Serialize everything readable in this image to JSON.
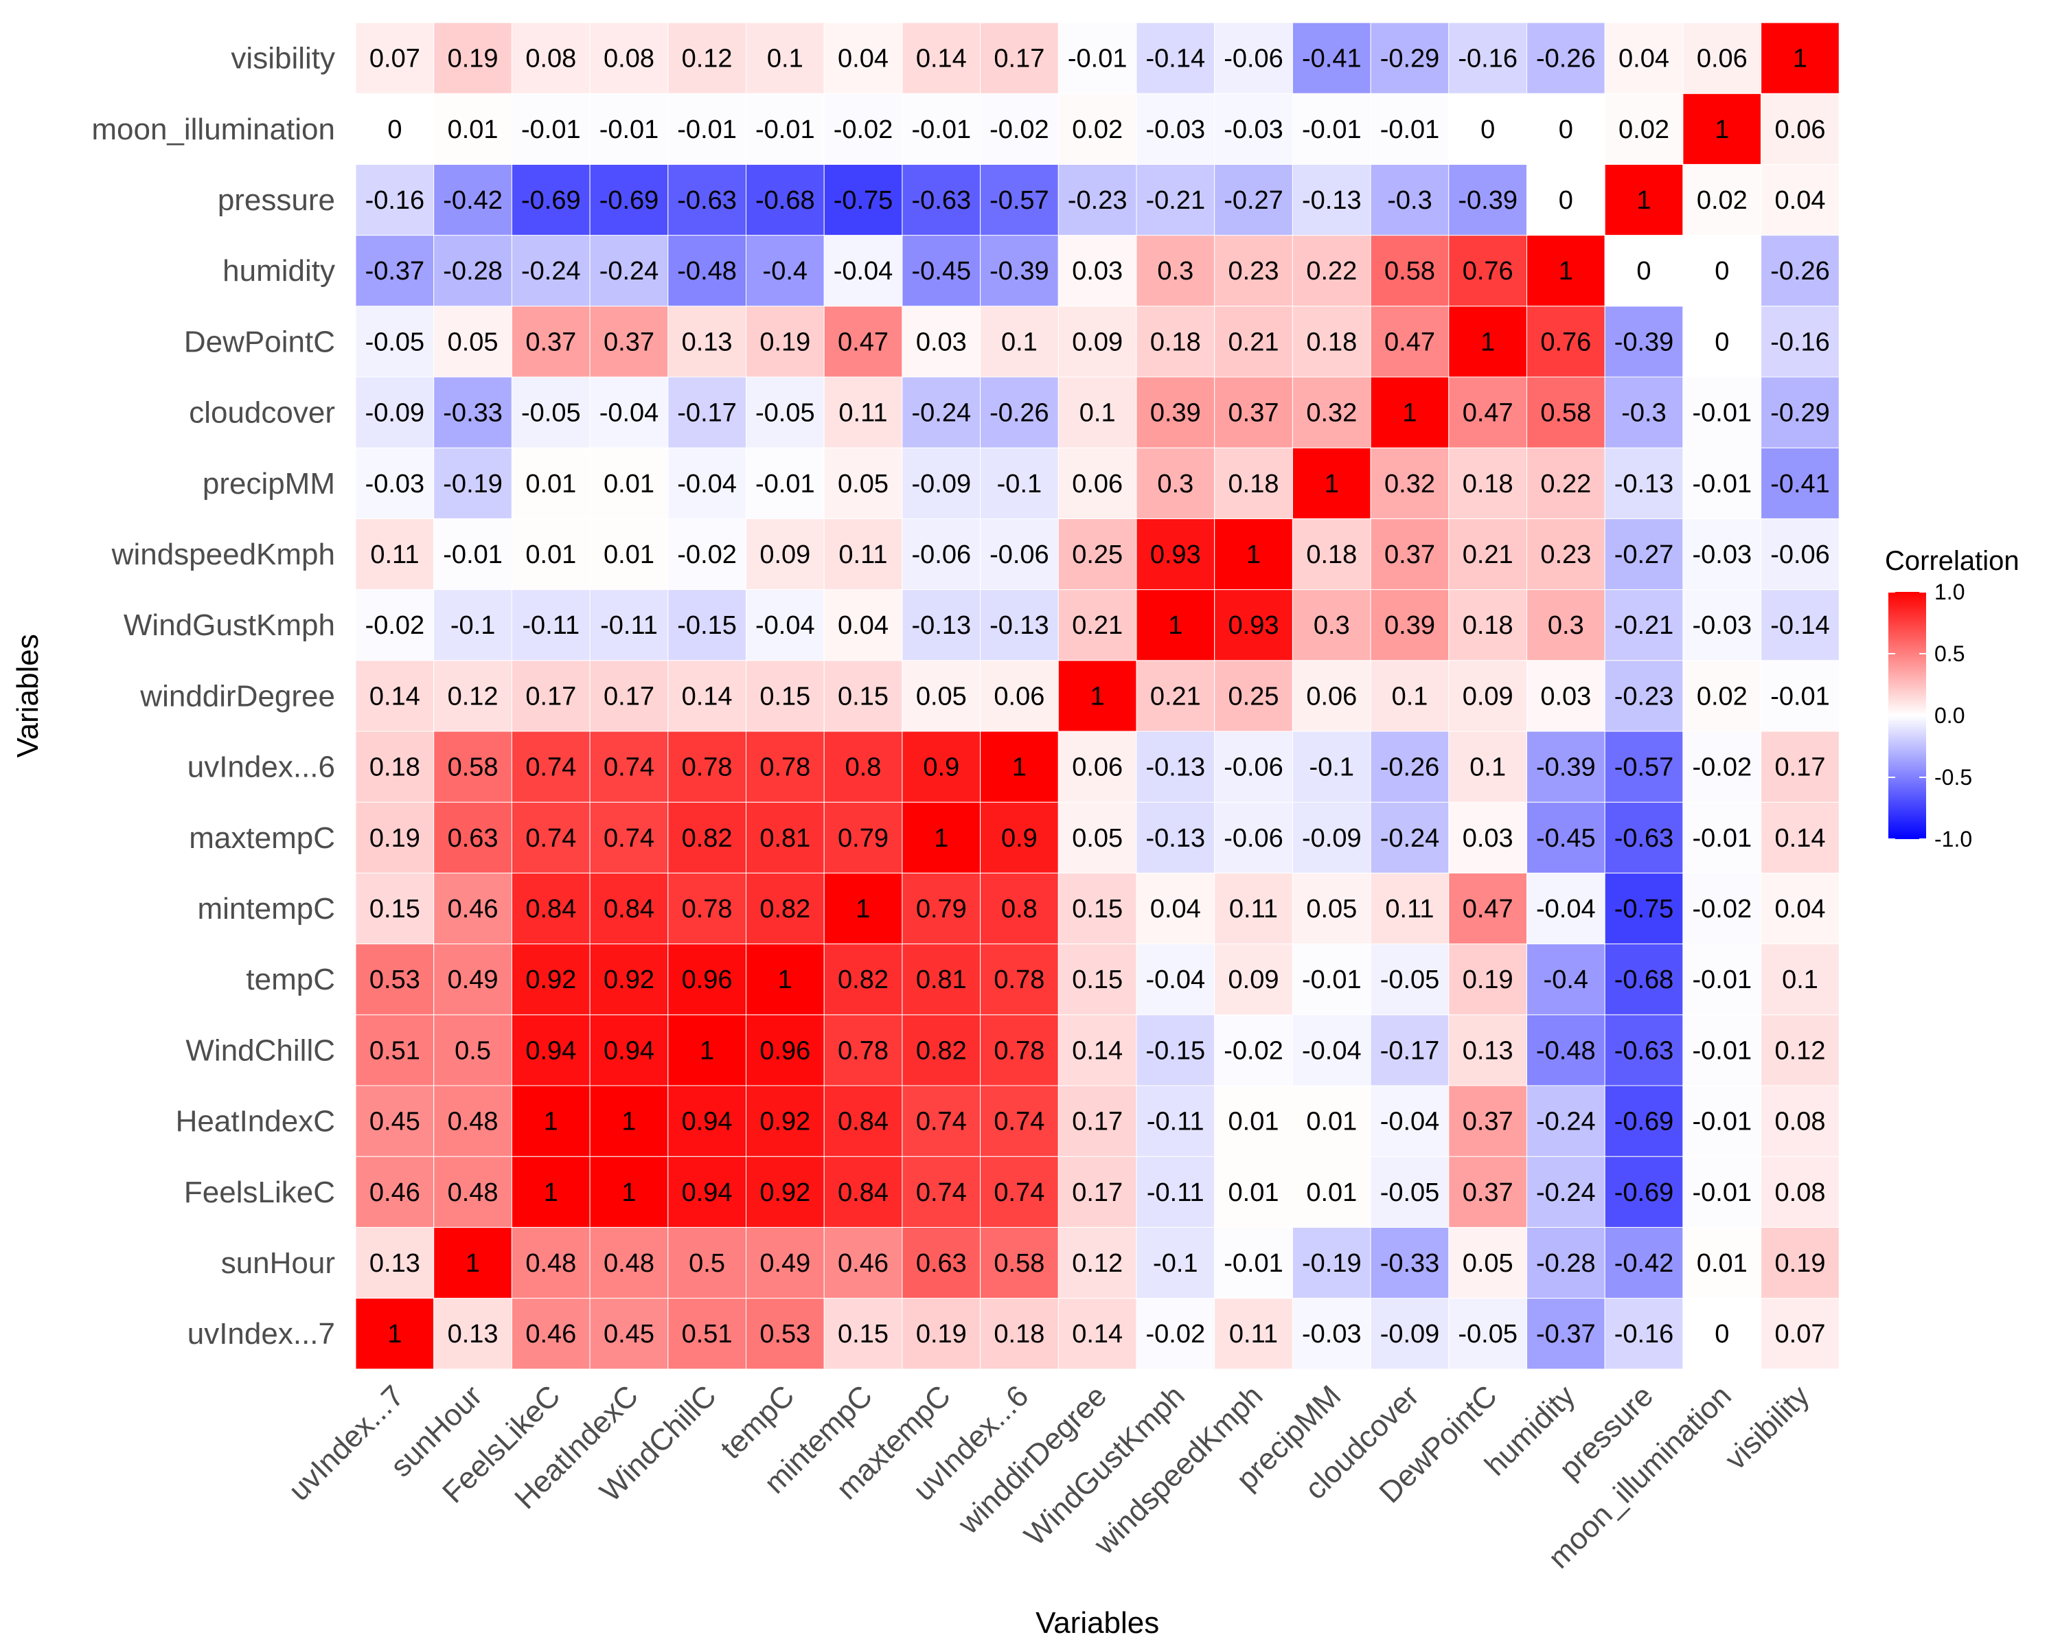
{
  "chart_data": {
    "type": "heatmap",
    "title": "",
    "xlabel": "Variables",
    "ylabel": "Variables",
    "variables": [
      "uvIndex...7",
      "sunHour",
      "FeelsLikeC",
      "HeatIndexC",
      "WindChillC",
      "tempC",
      "mintempC",
      "maxtempC",
      "uvIndex...6",
      "winddirDegree",
      "WindGustKmph",
      "windspeedKmph",
      "precipMM",
      "cloudcover",
      "DewPointC",
      "humidity",
      "pressure",
      "moon_illumination",
      "visibility"
    ],
    "matrix": [
      [
        1,
        0.13,
        0.46,
        0.45,
        0.51,
        0.53,
        0.15,
        0.19,
        0.18,
        0.14,
        -0.02,
        0.11,
        -0.03,
        -0.09,
        -0.05,
        -0.37,
        -0.16,
        0,
        0.07
      ],
      [
        0.13,
        1,
        0.48,
        0.48,
        0.5,
        0.49,
        0.46,
        0.63,
        0.58,
        0.12,
        -0.1,
        -0.01,
        -0.19,
        -0.33,
        0.05,
        -0.28,
        -0.42,
        0.01,
        0.19
      ],
      [
        0.46,
        0.48,
        1,
        1,
        0.94,
        0.92,
        0.84,
        0.74,
        0.74,
        0.17,
        -0.11,
        0.01,
        0.01,
        -0.05,
        0.37,
        -0.24,
        -0.69,
        -0.01,
        0.08
      ],
      [
        0.45,
        0.48,
        1,
        1,
        0.94,
        0.92,
        0.84,
        0.74,
        0.74,
        0.17,
        -0.11,
        0.01,
        0.01,
        -0.04,
        0.37,
        -0.24,
        -0.69,
        -0.01,
        0.08
      ],
      [
        0.51,
        0.5,
        0.94,
        0.94,
        1,
        0.96,
        0.78,
        0.82,
        0.78,
        0.14,
        -0.15,
        -0.02,
        -0.04,
        -0.17,
        0.13,
        -0.48,
        -0.63,
        -0.01,
        0.12
      ],
      [
        0.53,
        0.49,
        0.92,
        0.92,
        0.96,
        1,
        0.82,
        0.81,
        0.78,
        0.15,
        -0.04,
        0.09,
        -0.01,
        -0.05,
        0.19,
        -0.4,
        -0.68,
        -0.01,
        0.1
      ],
      [
        0.15,
        0.46,
        0.84,
        0.84,
        0.78,
        0.82,
        1,
        0.79,
        0.8,
        0.15,
        0.04,
        0.11,
        0.05,
        0.11,
        0.47,
        -0.04,
        -0.75,
        -0.02,
        0.04
      ],
      [
        0.19,
        0.63,
        0.74,
        0.74,
        0.82,
        0.81,
        0.79,
        1,
        0.9,
        0.05,
        -0.13,
        -0.06,
        -0.09,
        -0.24,
        0.03,
        -0.45,
        -0.63,
        -0.01,
        0.14
      ],
      [
        0.18,
        0.58,
        0.74,
        0.74,
        0.78,
        0.78,
        0.8,
        0.9,
        1,
        0.06,
        -0.13,
        -0.06,
        -0.1,
        -0.26,
        0.1,
        -0.39,
        -0.57,
        -0.02,
        0.17
      ],
      [
        0.14,
        0.12,
        0.17,
        0.17,
        0.14,
        0.15,
        0.15,
        0.05,
        0.06,
        1,
        0.21,
        0.25,
        0.06,
        0.1,
        0.09,
        0.03,
        -0.23,
        0.02,
        -0.01
      ],
      [
        -0.02,
        -0.1,
        -0.11,
        -0.11,
        -0.15,
        -0.04,
        0.04,
        -0.13,
        -0.13,
        0.21,
        1,
        0.93,
        0.3,
        0.39,
        0.18,
        0.3,
        -0.21,
        -0.03,
        -0.14
      ],
      [
        0.11,
        -0.01,
        0.01,
        0.01,
        -0.02,
        0.09,
        0.11,
        -0.06,
        -0.06,
        0.25,
        0.93,
        1,
        0.18,
        0.37,
        0.21,
        0.23,
        -0.27,
        -0.03,
        -0.06
      ],
      [
        -0.03,
        -0.19,
        0.01,
        0.01,
        -0.04,
        -0.01,
        0.05,
        -0.09,
        -0.1,
        0.06,
        0.3,
        0.18,
        1,
        0.32,
        0.18,
        0.22,
        -0.13,
        -0.01,
        -0.41
      ],
      [
        -0.09,
        -0.33,
        -0.05,
        -0.04,
        -0.17,
        -0.05,
        0.11,
        -0.24,
        -0.26,
        0.1,
        0.39,
        0.37,
        0.32,
        1,
        0.47,
        0.58,
        -0.3,
        -0.01,
        -0.29
      ],
      [
        -0.05,
        0.05,
        0.37,
        0.37,
        0.13,
        0.19,
        0.47,
        0.03,
        0.1,
        0.09,
        0.18,
        0.21,
        0.18,
        0.47,
        1,
        0.76,
        -0.39,
        0,
        -0.16
      ],
      [
        -0.37,
        -0.28,
        -0.24,
        -0.24,
        -0.48,
        -0.4,
        -0.04,
        -0.45,
        -0.39,
        0.03,
        0.3,
        0.23,
        0.22,
        0.58,
        0.76,
        1,
        0,
        0,
        -0.26
      ],
      [
        -0.16,
        -0.42,
        -0.69,
        -0.69,
        -0.63,
        -0.68,
        -0.75,
        -0.63,
        -0.57,
        -0.23,
        -0.21,
        -0.27,
        -0.13,
        -0.3,
        -0.39,
        0,
        1,
        0.02,
        0.04
      ],
      [
        0,
        0.01,
        -0.01,
        -0.01,
        -0.01,
        -0.01,
        -0.02,
        -0.01,
        -0.02,
        0.02,
        -0.03,
        -0.03,
        -0.01,
        -0.01,
        0,
        0,
        0.02,
        1,
        0.06
      ],
      [
        0.07,
        0.19,
        0.08,
        0.08,
        0.12,
        0.1,
        0.04,
        0.14,
        0.17,
        -0.01,
        -0.14,
        -0.06,
        -0.41,
        -0.29,
        -0.16,
        -0.26,
        0.04,
        0.06,
        1
      ]
    ],
    "value_range": [
      -1,
      1
    ],
    "legend": {
      "title": "Correlation",
      "position": "right",
      "ticks": [
        "1.0",
        "0.5",
        "0.0",
        "-0.5",
        "-1.0"
      ],
      "tick_values": [
        1,
        0.5,
        0,
        -0.5,
        -1
      ]
    },
    "colors": {
      "low": "#0000ff",
      "mid": "#ffffff",
      "high": "#ff0000"
    },
    "grid": false
  }
}
